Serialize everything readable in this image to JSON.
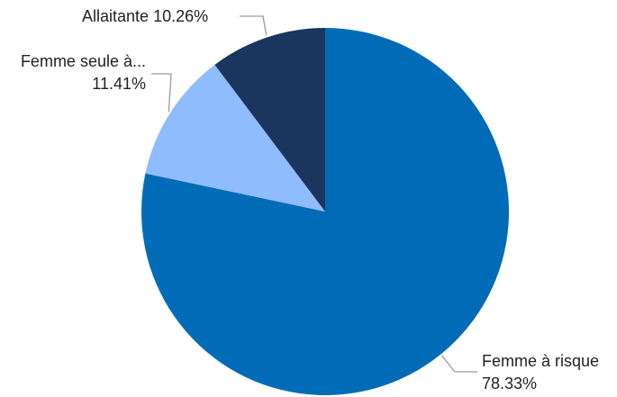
{
  "chart_data": {
    "type": "pie",
    "title": "",
    "slices": [
      {
        "label": "Femme à risque",
        "value": 78.33,
        "value_label": "78.33%",
        "color": "#006cb7"
      },
      {
        "label": "Femme seule à...",
        "value": 11.41,
        "value_label": "11.41%",
        "color": "#8fbcff"
      },
      {
        "label": "Allaitante",
        "value": 10.26,
        "value_label": "10.26%",
        "color": "#1a355e"
      }
    ],
    "legend": "none",
    "data_labels": "outside-with-leader-lines"
  }
}
